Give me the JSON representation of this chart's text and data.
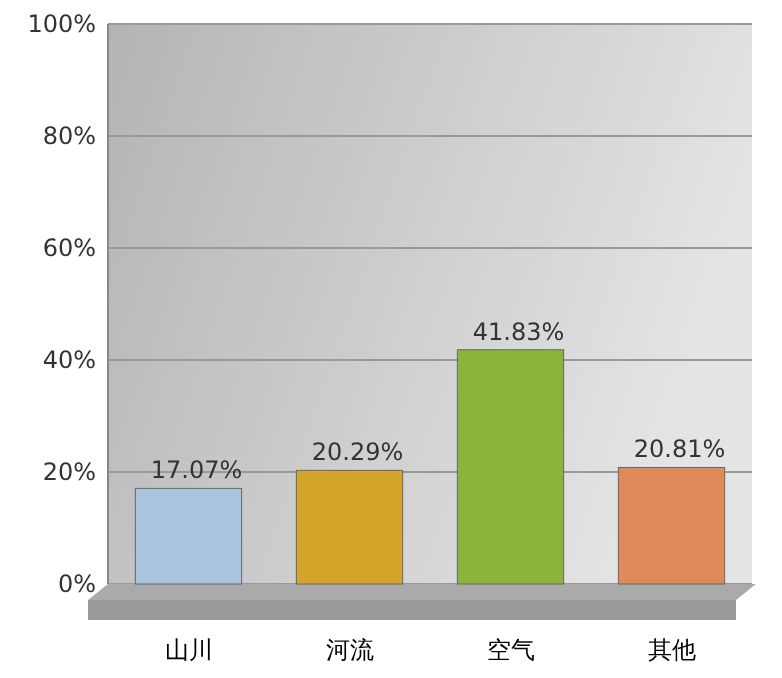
{
  "chart_data": {
    "type": "bar",
    "categories": [
      "山川",
      "河流",
      "空气",
      "其他"
    ],
    "values": [
      17.07,
      20.29,
      41.83,
      20.81
    ],
    "value_labels": [
      "17.07%",
      "20.29%",
      "41.83%",
      "20.81%"
    ],
    "colors": [
      "#a9c4dd",
      "#d4a52a",
      "#8ab43a",
      "#e0895a"
    ],
    "ylim": [
      0,
      100
    ],
    "yticks": [
      {
        "value": 0,
        "label": "0%"
      },
      {
        "value": 20,
        "label": "20%"
      },
      {
        "value": 40,
        "label": "40%"
      },
      {
        "value": 60,
        "label": "60%"
      },
      {
        "value": 80,
        "label": "80%"
      },
      {
        "value": 100,
        "label": "100%"
      }
    ],
    "grid": "y"
  }
}
